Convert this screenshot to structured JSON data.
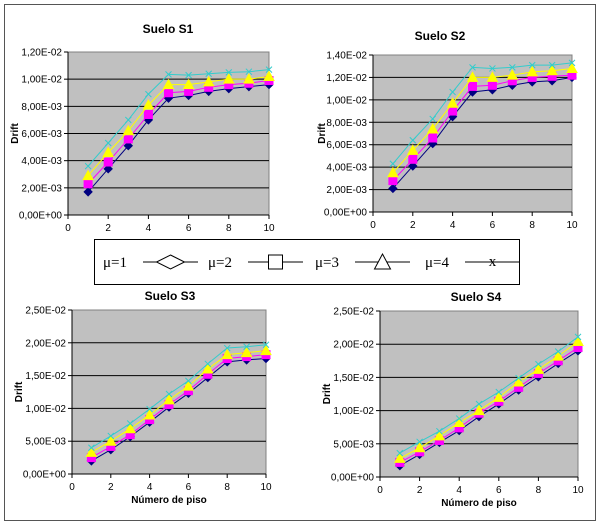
{
  "legend": {
    "items": [
      {
        "label": "μ=1",
        "marker": "diamond"
      },
      {
        "label": "μ=2",
        "marker": "square"
      },
      {
        "label": "μ=3",
        "marker": "triangle"
      },
      {
        "label": "μ=4",
        "marker": "x"
      }
    ]
  },
  "series_colors": [
    "#000080",
    "#ff00ff",
    "#ffff00",
    "#33cccc"
  ],
  "series_markers": [
    "diamond",
    "square",
    "triangle",
    "x"
  ],
  "plot_background": "#c0c0c0",
  "chart_data": [
    {
      "type": "line",
      "title": "Suelo S1",
      "xlabel": "",
      "ylabel": "Drift",
      "xlim": [
        0,
        10
      ],
      "ylim": [
        0,
        0.012
      ],
      "grid": true,
      "xticks": [
        "0",
        "2",
        "4",
        "6",
        "8",
        "10"
      ],
      "yticks": [
        "0,00E+00",
        "2,00E-03",
        "4,00E-03",
        "6,00E-03",
        "8,00E-03",
        "1,00E-02",
        "1,20E-02"
      ],
      "x": [
        1,
        2,
        3,
        4,
        5,
        6,
        7,
        8,
        9,
        10
      ],
      "series": [
        {
          "name": "μ=1",
          "values": [
            0.0017,
            0.0034,
            0.0051,
            0.007,
            0.0086,
            0.0088,
            0.0091,
            0.0093,
            0.00945,
            0.0096
          ]
        },
        {
          "name": "μ=2",
          "values": [
            0.0023,
            0.0039,
            0.0056,
            0.0074,
            0.009,
            0.0091,
            0.0094,
            0.0096,
            0.0097,
            0.0099
          ]
        },
        {
          "name": "μ=3",
          "values": [
            0.0029,
            0.0046,
            0.0062,
            0.0081,
            0.0096,
            0.0096,
            0.0098,
            0.01,
            0.01,
            0.0102
          ]
        },
        {
          "name": "μ=4",
          "values": [
            0.0036,
            0.0053,
            0.007,
            0.0089,
            0.01035,
            0.0103,
            0.0104,
            0.0105,
            0.01055,
            0.0107
          ]
        }
      ]
    },
    {
      "type": "line",
      "title": "Suelo S2",
      "xlabel": "",
      "ylabel": "Drift",
      "xlim": [
        0,
        10
      ],
      "ylim": [
        0,
        0.014
      ],
      "grid": true,
      "xticks": [
        "0",
        "2",
        "4",
        "6",
        "8",
        "10"
      ],
      "yticks": [
        "0,00E+00",
        "2,00E-03",
        "4,00E-03",
        "6,00E-03",
        "8,00E-03",
        "1,00E-02",
        "1,20E-02",
        "1,40E-02"
      ],
      "x": [
        1,
        2,
        3,
        4,
        5,
        6,
        7,
        8,
        9,
        10
      ],
      "series": [
        {
          "name": "μ=1",
          "values": [
            0.0021,
            0.0041,
            0.0061,
            0.0085,
            0.0107,
            0.0109,
            0.0113,
            0.0116,
            0.0117,
            0.012
          ]
        },
        {
          "name": "μ=2",
          "values": [
            0.0028,
            0.0047,
            0.0066,
            0.009,
            0.0112,
            0.0113,
            0.0117,
            0.012,
            0.0121,
            0.0122
          ]
        },
        {
          "name": "μ=3",
          "values": [
            0.0035,
            0.0055,
            0.0074,
            0.0097,
            0.012,
            0.012,
            0.0122,
            0.0125,
            0.0126,
            0.0128
          ]
        },
        {
          "name": "μ=4",
          "values": [
            0.0043,
            0.0064,
            0.0083,
            0.0107,
            0.0129,
            0.0128,
            0.0129,
            0.0131,
            0.0131,
            0.0133
          ]
        }
      ]
    },
    {
      "type": "line",
      "title": "Suelo S3",
      "xlabel": "Número de piso",
      "ylabel": "Drift",
      "xlim": [
        0,
        10
      ],
      "ylim": [
        0,
        0.025
      ],
      "grid": true,
      "xticks": [
        "0",
        "2",
        "4",
        "6",
        "8",
        "10"
      ],
      "yticks": [
        "0,00E+00",
        "5,00E-03",
        "1,00E-02",
        "1,50E-02",
        "2,00E-02",
        "2,50E-02"
      ],
      "x": [
        1,
        2,
        3,
        4,
        5,
        6,
        7,
        8,
        9,
        10
      ],
      "series": [
        {
          "name": "μ=1",
          "values": [
            0.002,
            0.0037,
            0.0057,
            0.0079,
            0.0102,
            0.0123,
            0.0147,
            0.0171,
            0.0174,
            0.0176
          ]
        },
        {
          "name": "μ=2",
          "values": [
            0.0025,
            0.0042,
            0.006,
            0.0083,
            0.0106,
            0.0127,
            0.0152,
            0.0176,
            0.0179,
            0.0182
          ]
        },
        {
          "name": "μ=3",
          "values": [
            0.0033,
            0.005,
            0.0069,
            0.009,
            0.0113,
            0.0134,
            0.016,
            0.0182,
            0.0185,
            0.0188
          ]
        },
        {
          "name": "μ=4",
          "values": [
            0.004,
            0.0058,
            0.0077,
            0.0099,
            0.0122,
            0.0142,
            0.0168,
            0.0192,
            0.0194,
            0.0197
          ]
        }
      ]
    },
    {
      "type": "line",
      "title": "Suelo S4",
      "xlabel": "Número de piso",
      "ylabel": "Drift",
      "xlim": [
        0,
        10
      ],
      "ylim": [
        0,
        0.025
      ],
      "grid": true,
      "xticks": [
        "0",
        "2",
        "4",
        "6",
        "8",
        "10"
      ],
      "yticks": [
        "0,00E+00",
        "5,00E-03",
        "1,00E-02",
        "1,50E-02",
        "2,00E-02",
        "2,50E-02"
      ],
      "x": [
        1,
        2,
        3,
        4,
        5,
        6,
        7,
        8,
        9,
        10
      ],
      "series": [
        {
          "name": "μ=1",
          "values": [
            0.0017,
            0.0034,
            0.0052,
            0.007,
            0.0091,
            0.011,
            0.0131,
            0.0151,
            0.0171,
            0.019
          ]
        },
        {
          "name": "μ=2",
          "values": [
            0.0022,
            0.0038,
            0.0055,
            0.0074,
            0.0096,
            0.0114,
            0.0135,
            0.0156,
            0.0175,
            0.0195
          ]
        },
        {
          "name": "μ=3",
          "values": [
            0.0028,
            0.0044,
            0.0062,
            0.0082,
            0.01,
            0.012,
            0.0143,
            0.0162,
            0.0182,
            0.0204
          ]
        },
        {
          "name": "μ=4",
          "values": [
            0.0036,
            0.0053,
            0.0069,
            0.0088,
            0.011,
            0.0128,
            0.0149,
            0.017,
            0.0189,
            0.0211
          ]
        }
      ]
    }
  ]
}
